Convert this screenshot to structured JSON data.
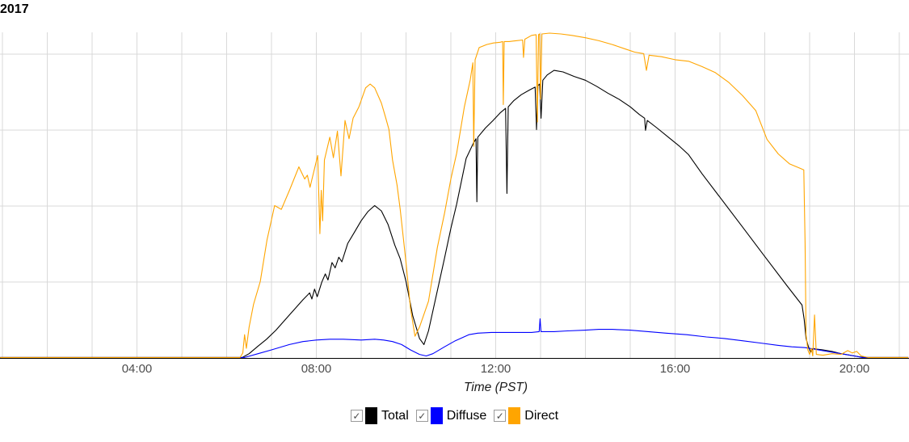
{
  "title": "2017",
  "colors": {
    "background": "#ffffff",
    "gridline": "#d9d9d9",
    "axis_line": "#000000",
    "tick_label": "#4d4d4d",
    "axis_title": "#1a1a1a",
    "total": "#000000",
    "diffuse": "#0000ff",
    "direct": "#ffa500"
  },
  "x_axis": {
    "label": "Time (PST)",
    "ticks": [
      "04:00",
      "08:00",
      "12:00",
      "16:00",
      "20:00"
    ],
    "tick_hours": [
      4,
      8,
      12,
      16,
      20
    ],
    "gridline_hours_start": 1,
    "gridline_hours_end": 21
  },
  "y_axis": {
    "note": "y-axis value labels are cropped out of the visible screenshot",
    "gridline_count": 4
  },
  "legend": [
    {
      "label": "Total",
      "color": "#000000",
      "checked": true,
      "check_glyph": "✓"
    },
    {
      "label": "Diffuse",
      "color": "#0000ff",
      "checked": true,
      "check_glyph": "✓"
    },
    {
      "label": "Direct",
      "color": "#ffa500",
      "checked": true,
      "check_glyph": "✓"
    }
  ],
  "chart_data": {
    "type": "line",
    "title": "2017",
    "xlabel": "Time (PST)",
    "ylabel": "",
    "x_unit": "hour of day (PST)",
    "y_unit": "gridline units; 1.0 = one horizontal gridline spacing (numeric axis labels cropped out of view)",
    "xlim": [
      0.95,
      21.2
    ],
    "ylim": [
      0,
      4.29
    ],
    "grid": true,
    "legend_position": "bottom",
    "series": [
      {
        "name": "Total",
        "color": "#000000",
        "points": [
          [
            0.95,
            0
          ],
          [
            6.35,
            0
          ],
          [
            6.5,
            0.05
          ],
          [
            6.7,
            0.15
          ],
          [
            6.89,
            0.24
          ],
          [
            7.1,
            0.36
          ],
          [
            7.4,
            0.56
          ],
          [
            7.7,
            0.76
          ],
          [
            7.85,
            0.85
          ],
          [
            7.9,
            0.77
          ],
          [
            7.96,
            0.9
          ],
          [
            8.02,
            0.8
          ],
          [
            8.12,
            0.99
          ],
          [
            8.2,
            1.1
          ],
          [
            8.26,
            1.02
          ],
          [
            8.35,
            1.25
          ],
          [
            8.42,
            1.18
          ],
          [
            8.5,
            1.32
          ],
          [
            8.57,
            1.26
          ],
          [
            8.7,
            1.5
          ],
          [
            8.85,
            1.65
          ],
          [
            9.0,
            1.8
          ],
          [
            9.15,
            1.92
          ],
          [
            9.3,
            2.0
          ],
          [
            9.45,
            1.93
          ],
          [
            9.6,
            1.75
          ],
          [
            9.75,
            1.48
          ],
          [
            9.87,
            1.3
          ],
          [
            10.0,
            1.0
          ],
          [
            10.15,
            0.55
          ],
          [
            10.3,
            0.25
          ],
          [
            10.4,
            0.17
          ],
          [
            10.5,
            0.35
          ],
          [
            10.65,
            0.75
          ],
          [
            10.86,
            1.31
          ],
          [
            11.0,
            1.7
          ],
          [
            11.13,
            2.02
          ],
          [
            11.34,
            2.62
          ],
          [
            11.5,
            2.82
          ],
          [
            11.56,
            2.88
          ],
          [
            11.58,
            2.05
          ],
          [
            11.6,
            2.9
          ],
          [
            11.77,
            3.02
          ],
          [
            11.94,
            3.12
          ],
          [
            12.1,
            3.22
          ],
          [
            12.22,
            3.28
          ],
          [
            12.25,
            2.16
          ],
          [
            12.28,
            3.3
          ],
          [
            12.4,
            3.38
          ],
          [
            12.57,
            3.46
          ],
          [
            12.75,
            3.52
          ],
          [
            12.88,
            3.56
          ],
          [
            12.91,
            3.0
          ],
          [
            12.94,
            3.58
          ],
          [
            12.98,
            3.6
          ],
          [
            13.01,
            3.15
          ],
          [
            13.05,
            3.65
          ],
          [
            13.15,
            3.72
          ],
          [
            13.3,
            3.78
          ],
          [
            13.5,
            3.76
          ],
          [
            13.75,
            3.7
          ],
          [
            14.0,
            3.65
          ],
          [
            14.25,
            3.57
          ],
          [
            14.5,
            3.48
          ],
          [
            14.75,
            3.4
          ],
          [
            15.0,
            3.3
          ],
          [
            15.2,
            3.2
          ],
          [
            15.32,
            3.15
          ],
          [
            15.34,
            2.99
          ],
          [
            15.38,
            3.12
          ],
          [
            15.6,
            3.02
          ],
          [
            15.85,
            2.9
          ],
          [
            16.1,
            2.78
          ],
          [
            16.3,
            2.67
          ],
          [
            16.6,
            2.42
          ],
          [
            17.0,
            2.11
          ],
          [
            17.5,
            1.72
          ],
          [
            18.0,
            1.33
          ],
          [
            18.5,
            0.94
          ],
          [
            18.83,
            0.69
          ],
          [
            18.88,
            0.5
          ],
          [
            18.92,
            0.25
          ],
          [
            18.97,
            0.15
          ],
          [
            19.02,
            0.07
          ],
          [
            19.08,
            0.12
          ],
          [
            19.15,
            0.11
          ],
          [
            19.3,
            0.1
          ],
          [
            19.5,
            0.08
          ],
          [
            19.7,
            0.05
          ],
          [
            19.9,
            0.03
          ],
          [
            20.1,
            0.01
          ],
          [
            20.25,
            0
          ],
          [
            21.2,
            0
          ]
        ]
      },
      {
        "name": "Diffuse",
        "color": "#0000ff",
        "points": [
          [
            0.95,
            0
          ],
          [
            6.4,
            0
          ],
          [
            6.7,
            0.05
          ],
          [
            7.0,
            0.1
          ],
          [
            7.4,
            0.17
          ],
          [
            7.7,
            0.21
          ],
          [
            8.0,
            0.23
          ],
          [
            8.3,
            0.24
          ],
          [
            8.6,
            0.24
          ],
          [
            9.0,
            0.23
          ],
          [
            9.3,
            0.24
          ],
          [
            9.5,
            0.23
          ],
          [
            9.7,
            0.21
          ],
          [
            9.9,
            0.17
          ],
          [
            10.1,
            0.1
          ],
          [
            10.3,
            0.04
          ],
          [
            10.45,
            0.02
          ],
          [
            10.6,
            0.05
          ],
          [
            10.86,
            0.14
          ],
          [
            11.1,
            0.22
          ],
          [
            11.4,
            0.3
          ],
          [
            11.6,
            0.32
          ],
          [
            11.9,
            0.33
          ],
          [
            12.2,
            0.33
          ],
          [
            12.5,
            0.33
          ],
          [
            12.8,
            0.33
          ],
          [
            12.97,
            0.34
          ],
          [
            12.99,
            0.51
          ],
          [
            13.01,
            0.34
          ],
          [
            13.3,
            0.34
          ],
          [
            13.6,
            0.35
          ],
          [
            14.0,
            0.36
          ],
          [
            14.3,
            0.37
          ],
          [
            14.6,
            0.37
          ],
          [
            15.0,
            0.36
          ],
          [
            15.4,
            0.34
          ],
          [
            15.8,
            0.32
          ],
          [
            16.26,
            0.3
          ],
          [
            16.7,
            0.27
          ],
          [
            17.1,
            0.25
          ],
          [
            17.5,
            0.22
          ],
          [
            17.9,
            0.19
          ],
          [
            18.3,
            0.16
          ],
          [
            18.6,
            0.14
          ],
          [
            18.9,
            0.13
          ],
          [
            19.1,
            0.11
          ],
          [
            19.4,
            0.08
          ],
          [
            19.7,
            0.05
          ],
          [
            20.0,
            0.02
          ],
          [
            20.17,
            0
          ],
          [
            21.2,
            0
          ]
        ]
      },
      {
        "name": "Direct",
        "color": "#ffa500",
        "points": [
          [
            0.95,
            0
          ],
          [
            6.3,
            0
          ],
          [
            6.36,
            0.06
          ],
          [
            6.4,
            0.3
          ],
          [
            6.44,
            0.12
          ],
          [
            6.5,
            0.4
          ],
          [
            6.6,
            0.7
          ],
          [
            6.75,
            1.0
          ],
          [
            6.9,
            1.55
          ],
          [
            7.07,
            2.0
          ],
          [
            7.22,
            1.95
          ],
          [
            7.4,
            2.2
          ],
          [
            7.61,
            2.51
          ],
          [
            7.74,
            2.35
          ],
          [
            7.8,
            2.4
          ],
          [
            7.86,
            2.24
          ],
          [
            8.03,
            2.66
          ],
          [
            8.08,
            1.63
          ],
          [
            8.11,
            2.2
          ],
          [
            8.14,
            1.8
          ],
          [
            8.18,
            2.6
          ],
          [
            8.3,
            2.9
          ],
          [
            8.38,
            2.63
          ],
          [
            8.47,
            2.98
          ],
          [
            8.55,
            2.39
          ],
          [
            8.64,
            3.12
          ],
          [
            8.73,
            2.88
          ],
          [
            8.82,
            3.15
          ],
          [
            8.95,
            3.3
          ],
          [
            9.1,
            3.55
          ],
          [
            9.2,
            3.6
          ],
          [
            9.3,
            3.55
          ],
          [
            9.45,
            3.35
          ],
          [
            9.55,
            3.15
          ],
          [
            9.62,
            3.0
          ],
          [
            9.7,
            2.6
          ],
          [
            9.8,
            2.27
          ],
          [
            9.87,
            1.95
          ],
          [
            10.0,
            1.25
          ],
          [
            10.1,
            0.65
          ],
          [
            10.2,
            0.28
          ],
          [
            10.3,
            0.4
          ],
          [
            10.5,
            0.74
          ],
          [
            10.7,
            1.45
          ],
          [
            10.86,
            1.9
          ],
          [
            11.0,
            2.35
          ],
          [
            11.13,
            2.69
          ],
          [
            11.3,
            3.3
          ],
          [
            11.43,
            3.65
          ],
          [
            11.49,
            3.88
          ],
          [
            11.51,
            2.78
          ],
          [
            11.54,
            3.92
          ],
          [
            11.63,
            4.08
          ],
          [
            11.8,
            4.12
          ],
          [
            11.95,
            4.14
          ],
          [
            12.1,
            4.15
          ],
          [
            12.155,
            4.16
          ],
          [
            12.17,
            3.33
          ],
          [
            12.19,
            4.16
          ],
          [
            12.3,
            4.16
          ],
          [
            12.45,
            4.17
          ],
          [
            12.6,
            4.18
          ],
          [
            12.62,
            3.95
          ],
          [
            12.65,
            4.19
          ],
          [
            12.8,
            4.24
          ],
          [
            12.9,
            4.25
          ],
          [
            12.93,
            3.1
          ],
          [
            12.955,
            4.25
          ],
          [
            12.98,
            4.26
          ],
          [
            13.0,
            3.4
          ],
          [
            13.03,
            4.26
          ],
          [
            13.2,
            4.27
          ],
          [
            13.45,
            4.26
          ],
          [
            13.7,
            4.24
          ],
          [
            14.0,
            4.21
          ],
          [
            14.3,
            4.17
          ],
          [
            14.6,
            4.12
          ],
          [
            14.9,
            4.06
          ],
          [
            15.1,
            4.02
          ],
          [
            15.3,
            4.0
          ],
          [
            15.36,
            3.78
          ],
          [
            15.42,
            3.98
          ],
          [
            15.7,
            3.96
          ],
          [
            16.0,
            3.92
          ],
          [
            16.3,
            3.9
          ],
          [
            16.6,
            3.83
          ],
          [
            16.9,
            3.75
          ],
          [
            17.2,
            3.62
          ],
          [
            17.5,
            3.45
          ],
          [
            17.8,
            3.25
          ],
          [
            18.05,
            2.87
          ],
          [
            18.3,
            2.68
          ],
          [
            18.55,
            2.55
          ],
          [
            18.75,
            2.5
          ],
          [
            18.87,
            2.47
          ],
          [
            18.9,
            1.5
          ],
          [
            18.92,
            0.3
          ],
          [
            18.96,
            0.1
          ],
          [
            19.0,
            0.04
          ],
          [
            19.04,
            0.12
          ],
          [
            19.07,
            0.02
          ],
          [
            19.11,
            0.56
          ],
          [
            19.15,
            0.04
          ],
          [
            19.3,
            0.03
          ],
          [
            19.5,
            0.05
          ],
          [
            19.7,
            0.04
          ],
          [
            19.85,
            0.09
          ],
          [
            19.95,
            0.06
          ],
          [
            20.05,
            0.08
          ],
          [
            20.15,
            0.02
          ],
          [
            20.3,
            0
          ],
          [
            21.2,
            0
          ]
        ]
      }
    ]
  }
}
